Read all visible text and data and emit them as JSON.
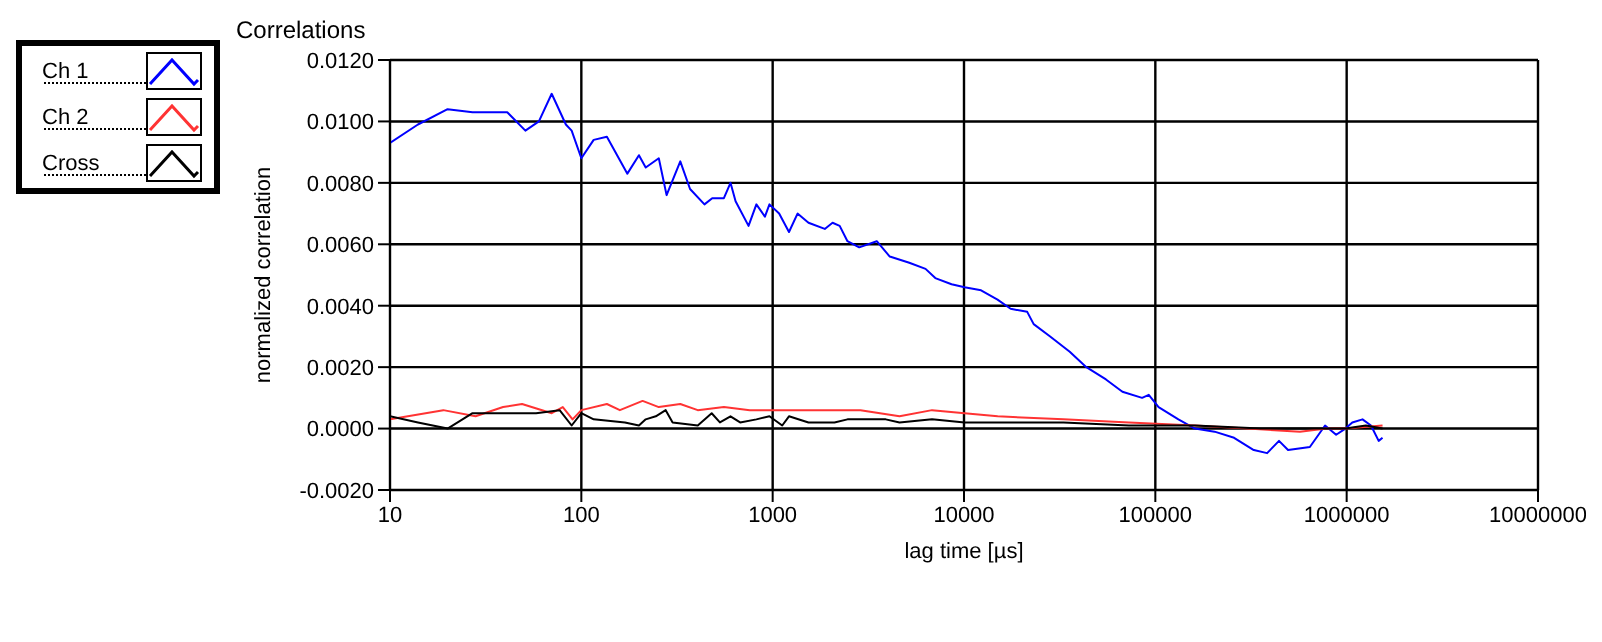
{
  "chart_data": {
    "type": "line",
    "title": "Correlations",
    "xlabel": "lag time [µs]",
    "ylabel": "normalized correlation",
    "log": "x",
    "grid": true,
    "legend": "top left",
    "marker": "none",
    "line_style": "solid",
    "xlim": [
      10,
      10000000
    ],
    "xticks": [
      10,
      100,
      1000,
      10000,
      100000,
      1000000,
      10000000
    ],
    "ylim": [
      -0.002,
      0.012
    ],
    "yticks": [
      {
        "value": -0.002,
        "label": "-0.0020"
      },
      {
        "value": 0,
        "label": "0.0000"
      },
      {
        "value": 0.002,
        "label": "0.0020"
      },
      {
        "value": 0.004,
        "label": "0.0040"
      },
      {
        "value": 0.006,
        "label": "0.0060"
      },
      {
        "value": 0.008,
        "label": "0.0080"
      },
      {
        "value": 0.01,
        "label": "0.0100"
      },
      {
        "value": 0.012,
        "label": "0.0120"
      }
    ],
    "series": [
      {
        "name": "Ch 1",
        "color": "#0000ff",
        "x": [
          10,
          14,
          20,
          27,
          41,
          51,
          60,
          70,
          83,
          89,
          100,
          116,
          136,
          174,
          200,
          217,
          254,
          279,
          329,
          370,
          440,
          483,
          556,
          602,
          640,
          748,
          822,
          911,
          962,
          1081,
          1217,
          1349,
          1539,
          1872,
          2056,
          2240,
          2460,
          2833,
          3500,
          4093,
          5176,
          6295,
          7080,
          8610,
          10070,
          12280,
          14970,
          17530,
          21400,
          23130,
          28200,
          35700,
          43600,
          55200,
          67300,
          85300,
          92400,
          104000,
          132000,
          161000,
          204000,
          258000,
          327000,
          384000,
          443000,
          494000,
          642000,
          771000,
          881000,
          985000,
          1070000,
          1210000,
          1340000,
          1470000,
          1540000
        ],
        "values": [
          0.0093,
          0.0099,
          0.0104,
          0.0103,
          0.0103,
          0.0097,
          0.01,
          0.0109,
          0.0099,
          0.0097,
          0.0088,
          0.0094,
          0.0095,
          0.0083,
          0.0089,
          0.0085,
          0.0088,
          0.0076,
          0.0087,
          0.0078,
          0.0073,
          0.0075,
          0.0075,
          0.008,
          0.0074,
          0.0066,
          0.0073,
          0.0069,
          0.0073,
          0.007,
          0.0064,
          0.007,
          0.0067,
          0.0065,
          0.0067,
          0.0066,
          0.0061,
          0.0059,
          0.0061,
          0.0056,
          0.0054,
          0.0052,
          0.0049,
          0.0047,
          0.0046,
          0.0045,
          0.0042,
          0.0039,
          0.0038,
          0.0034,
          0.003,
          0.0025,
          0.002,
          0.0016,
          0.0012,
          0.001,
          0.0011,
          0.0007,
          0.0003,
          0,
          -0.0001,
          -0.0003,
          -0.0007,
          -0.0008,
          -0.0004,
          -0.0007,
          -0.0006,
          0.0001,
          -0.0002,
          0,
          0.0002,
          0.0003,
          0.0001,
          -0.0004,
          -0.0003
        ]
      },
      {
        "name": "Ch 2",
        "color": "#ff3333",
        "x": [
          10,
          19,
          28,
          39,
          49,
          70,
          80,
          90,
          100,
          136,
          159,
          209,
          254,
          329,
          406,
          556,
          759,
          1122,
          2104,
          2877,
          4603,
          6808,
          10070,
          15000,
          33100,
          72800,
          161000,
          303000,
          570000,
          782000,
          985000,
          1540000
        ],
        "values": [
          0.0003,
          0.0006,
          0.0004,
          0.0007,
          0.0008,
          0.0005,
          0.0007,
          0.0003,
          0.0006,
          0.0008,
          0.0006,
          0.0009,
          0.0007,
          0.0008,
          0.0006,
          0.0007,
          0.0006,
          0.0006,
          0.0006,
          0.0006,
          0.0004,
          0.0006,
          0.0005,
          0.0004,
          0.0003,
          0.0002,
          0.0001,
          0,
          -0.0001,
          0,
          0,
          0.0001
        ]
      },
      {
        "name": "Cross",
        "color": "#000000",
        "x": [
          10,
          14,
          20,
          27,
          41,
          58,
          77,
          89,
          100,
          116,
          169,
          200,
          217,
          245,
          276,
          300,
          406,
          480,
          530,
          602,
          676,
          822,
          962,
          1122,
          1217,
          1539,
          2104,
          2460,
          3900,
          4603,
          6808,
          10070,
          15000,
          33100,
          72800,
          161000,
          355000,
          570000,
          985000,
          1260000,
          1540000
        ],
        "values": [
          0.0004,
          0.0002,
          0,
          0.0005,
          0.0005,
          0.0005,
          0.0006,
          0.0001,
          0.0005,
          0.0003,
          0.0002,
          0.0001,
          0.0003,
          0.0004,
          0.0006,
          0.0002,
          0.0001,
          0.0005,
          0.0002,
          0.0004,
          0.0002,
          0.0003,
          0.0004,
          0.0001,
          0.0004,
          0.0002,
          0.0002,
          0.0003,
          0.0003,
          0.0002,
          0.0003,
          0.0002,
          0.0002,
          0.0002,
          0.0001,
          0.0001,
          0,
          0,
          0,
          0.0001,
          0
        ]
      }
    ]
  }
}
